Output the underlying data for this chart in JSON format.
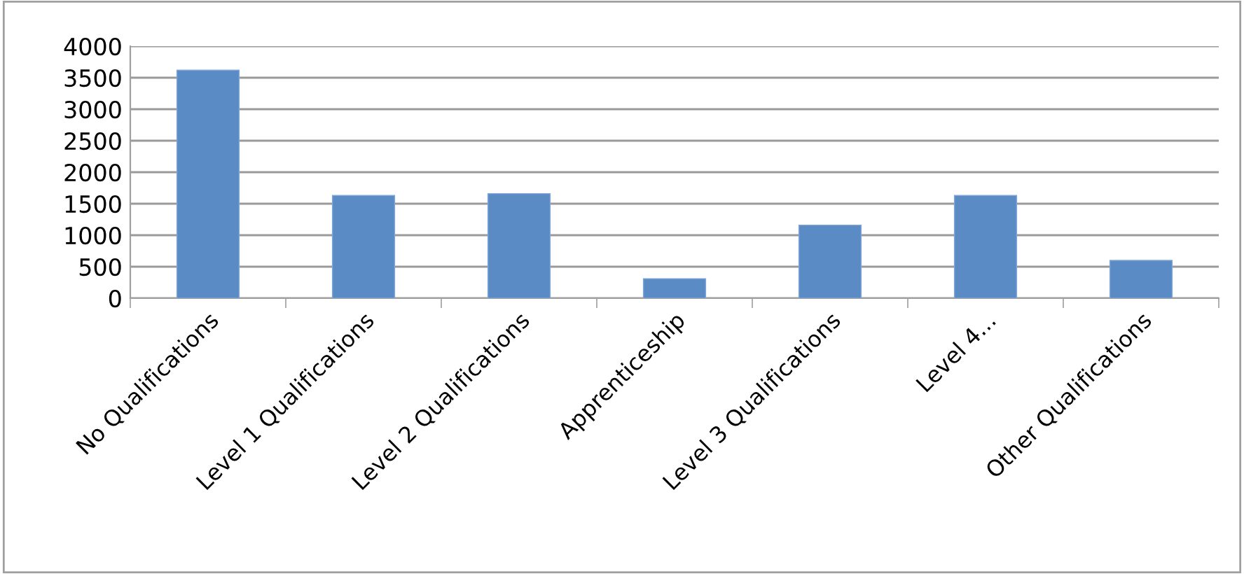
{
  "chart_data": {
    "type": "bar",
    "categories": [
      "No Qualifications",
      "Level 1 Qualifications",
      "Level 2 Qualifications",
      "Apprenticeship",
      "Level 3 Qualifications",
      "Level 4...",
      "Other Qualifications"
    ],
    "values": [
      3620,
      1630,
      1660,
      310,
      1160,
      1630,
      600
    ],
    "color": "#5b8bc5",
    "ylim": [
      0,
      4000
    ],
    "yticks": [
      0,
      500,
      1000,
      1500,
      2000,
      2500,
      3000,
      3500,
      4000
    ],
    "grid": "y"
  }
}
